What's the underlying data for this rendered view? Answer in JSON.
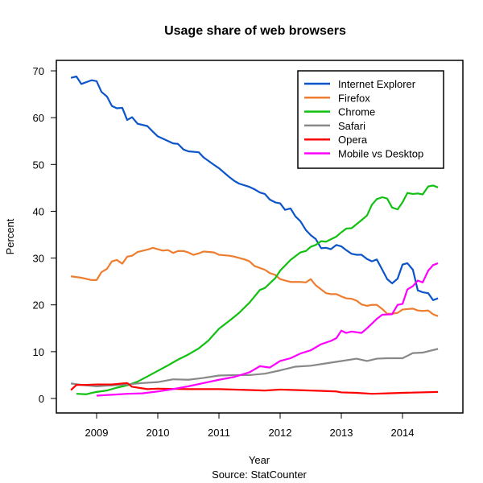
{
  "chart_data": {
    "type": "line",
    "title": "Usage share of web browsers",
    "xlabel": "Year",
    "ylabel": "Percent",
    "caption": "Source: StatCounter",
    "xlim": [
      2008.45,
      2014.75
    ],
    "ylim": [
      -3,
      73
    ],
    "x_ticks": [
      2009,
      2010,
      2011,
      2012,
      2013,
      2014
    ],
    "y_ticks": [
      0,
      10,
      20,
      30,
      40,
      50,
      60,
      70
    ],
    "grid": false,
    "legend_position": "top-right",
    "series": [
      {
        "name": "Internet Explorer",
        "color": "#0b54c9",
        "points": [
          [
            2008.58,
            68.5
          ],
          [
            2008.67,
            68.8
          ],
          [
            2008.75,
            67.2
          ],
          [
            2008.92,
            68.0
          ],
          [
            2009.0,
            67.8
          ],
          [
            2009.08,
            65.5
          ],
          [
            2009.17,
            64.5
          ],
          [
            2009.25,
            62.5
          ],
          [
            2009.33,
            62.0
          ],
          [
            2009.42,
            62.1
          ],
          [
            2009.5,
            59.5
          ],
          [
            2009.58,
            60.1
          ],
          [
            2009.67,
            58.7
          ],
          [
            2009.83,
            58.2
          ],
          [
            2009.92,
            57.0
          ],
          [
            2010.0,
            56.0
          ],
          [
            2010.17,
            55.0
          ],
          [
            2010.25,
            54.5
          ],
          [
            2010.33,
            54.4
          ],
          [
            2010.42,
            53.2
          ],
          [
            2010.5,
            52.8
          ],
          [
            2010.67,
            52.6
          ],
          [
            2010.75,
            51.5
          ],
          [
            2010.92,
            49.9
          ],
          [
            2011.0,
            49.2
          ],
          [
            2011.17,
            47.3
          ],
          [
            2011.25,
            46.5
          ],
          [
            2011.33,
            45.9
          ],
          [
            2011.5,
            45.2
          ],
          [
            2011.58,
            44.7
          ],
          [
            2011.67,
            44.0
          ],
          [
            2011.75,
            43.7
          ],
          [
            2011.83,
            42.5
          ],
          [
            2011.92,
            41.9
          ],
          [
            2012.0,
            41.7
          ],
          [
            2012.08,
            40.3
          ],
          [
            2012.17,
            40.6
          ],
          [
            2012.25,
            38.9
          ],
          [
            2012.33,
            37.9
          ],
          [
            2012.42,
            36.0
          ],
          [
            2012.5,
            34.9
          ],
          [
            2012.58,
            34.1
          ],
          [
            2012.67,
            32.1
          ],
          [
            2012.75,
            32.2
          ],
          [
            2012.83,
            31.9
          ],
          [
            2012.92,
            32.8
          ],
          [
            2013.0,
            32.5
          ],
          [
            2013.08,
            31.7
          ],
          [
            2013.17,
            30.9
          ],
          [
            2013.25,
            30.7
          ],
          [
            2013.33,
            30.7
          ],
          [
            2013.42,
            29.8
          ],
          [
            2013.5,
            29.3
          ],
          [
            2013.58,
            29.7
          ],
          [
            2013.67,
            27.5
          ],
          [
            2013.75,
            25.5
          ],
          [
            2013.83,
            24.6
          ],
          [
            2013.92,
            25.6
          ],
          [
            2014.0,
            28.6
          ],
          [
            2014.08,
            28.9
          ],
          [
            2014.17,
            27.5
          ],
          [
            2014.25,
            23.1
          ],
          [
            2014.33,
            22.7
          ],
          [
            2014.42,
            22.5
          ],
          [
            2014.5,
            21.0
          ],
          [
            2014.58,
            21.4
          ]
        ]
      },
      {
        "name": "Firefox",
        "color": "#ee7d2f",
        "points": [
          [
            2008.58,
            26.1
          ],
          [
            2008.75,
            25.8
          ],
          [
            2008.92,
            25.3
          ],
          [
            2009.0,
            25.3
          ],
          [
            2009.08,
            27.0
          ],
          [
            2009.17,
            27.7
          ],
          [
            2009.25,
            29.3
          ],
          [
            2009.33,
            29.6
          ],
          [
            2009.42,
            28.8
          ],
          [
            2009.5,
            30.3
          ],
          [
            2009.58,
            30.5
          ],
          [
            2009.67,
            31.3
          ],
          [
            2009.83,
            31.8
          ],
          [
            2009.92,
            32.2
          ],
          [
            2010.0,
            31.9
          ],
          [
            2010.08,
            31.6
          ],
          [
            2010.17,
            31.7
          ],
          [
            2010.25,
            31.1
          ],
          [
            2010.33,
            31.5
          ],
          [
            2010.42,
            31.5
          ],
          [
            2010.5,
            31.2
          ],
          [
            2010.58,
            30.7
          ],
          [
            2010.67,
            31.0
          ],
          [
            2010.75,
            31.4
          ],
          [
            2010.92,
            31.2
          ],
          [
            2011.0,
            30.7
          ],
          [
            2011.17,
            30.5
          ],
          [
            2011.25,
            30.3
          ],
          [
            2011.42,
            29.7
          ],
          [
            2011.5,
            29.3
          ],
          [
            2011.58,
            28.3
          ],
          [
            2011.75,
            27.5
          ],
          [
            2011.83,
            26.8
          ],
          [
            2011.92,
            26.4
          ],
          [
            2012.0,
            25.5
          ],
          [
            2012.08,
            25.2
          ],
          [
            2012.17,
            24.9
          ],
          [
            2012.33,
            24.9
          ],
          [
            2012.42,
            24.8
          ],
          [
            2012.5,
            25.5
          ],
          [
            2012.58,
            24.2
          ],
          [
            2012.67,
            23.3
          ],
          [
            2012.75,
            22.5
          ],
          [
            2012.83,
            22.3
          ],
          [
            2012.92,
            22.3
          ],
          [
            2013.0,
            21.8
          ],
          [
            2013.08,
            21.4
          ],
          [
            2013.17,
            21.3
          ],
          [
            2013.25,
            20.9
          ],
          [
            2013.33,
            20.1
          ],
          [
            2013.42,
            19.8
          ],
          [
            2013.5,
            20.0
          ],
          [
            2013.58,
            20.0
          ],
          [
            2013.67,
            19.1
          ],
          [
            2013.75,
            18.1
          ],
          [
            2013.83,
            18.1
          ],
          [
            2013.92,
            18.3
          ],
          [
            2014.0,
            19.0
          ],
          [
            2014.08,
            19.1
          ],
          [
            2014.17,
            19.2
          ],
          [
            2014.25,
            18.8
          ],
          [
            2014.33,
            18.7
          ],
          [
            2014.42,
            18.8
          ],
          [
            2014.5,
            18.0
          ],
          [
            2014.58,
            17.6
          ]
        ]
      },
      {
        "name": "Chrome",
        "color": "#11c011",
        "points": [
          [
            2008.67,
            1.0
          ],
          [
            2008.83,
            0.9
          ],
          [
            2008.92,
            1.2
          ],
          [
            2009.0,
            1.4
          ],
          [
            2009.17,
            1.7
          ],
          [
            2009.33,
            2.3
          ],
          [
            2009.5,
            2.8
          ],
          [
            2009.67,
            3.6
          ],
          [
            2009.83,
            4.7
          ],
          [
            2010.0,
            5.9
          ],
          [
            2010.17,
            7.1
          ],
          [
            2010.33,
            8.3
          ],
          [
            2010.5,
            9.4
          ],
          [
            2010.67,
            10.7
          ],
          [
            2010.83,
            12.4
          ],
          [
            2011.0,
            14.9
          ],
          [
            2011.17,
            16.6
          ],
          [
            2011.33,
            18.3
          ],
          [
            2011.5,
            20.5
          ],
          [
            2011.67,
            23.2
          ],
          [
            2011.75,
            23.6
          ],
          [
            2011.92,
            25.7
          ],
          [
            2012.0,
            27.3
          ],
          [
            2012.17,
            29.6
          ],
          [
            2012.33,
            31.2
          ],
          [
            2012.42,
            31.5
          ],
          [
            2012.5,
            32.4
          ],
          [
            2012.58,
            32.8
          ],
          [
            2012.67,
            33.6
          ],
          [
            2012.75,
            33.5
          ],
          [
            2012.92,
            34.6
          ],
          [
            2013.0,
            35.5
          ],
          [
            2013.08,
            36.3
          ],
          [
            2013.17,
            36.4
          ],
          [
            2013.33,
            38.1
          ],
          [
            2013.42,
            39.1
          ],
          [
            2013.5,
            41.4
          ],
          [
            2013.58,
            42.6
          ],
          [
            2013.67,
            43.0
          ],
          [
            2013.75,
            42.7
          ],
          [
            2013.83,
            40.8
          ],
          [
            2013.92,
            40.4
          ],
          [
            2014.0,
            41.9
          ],
          [
            2014.08,
            43.9
          ],
          [
            2014.17,
            43.7
          ],
          [
            2014.25,
            43.8
          ],
          [
            2014.33,
            43.6
          ],
          [
            2014.42,
            45.3
          ],
          [
            2014.5,
            45.5
          ],
          [
            2014.58,
            45.1
          ]
        ]
      },
      {
        "name": "Safari",
        "color": "#888888",
        "points": [
          [
            2008.58,
            3.2
          ],
          [
            2008.75,
            2.9
          ],
          [
            2009.0,
            2.6
          ],
          [
            2009.25,
            2.8
          ],
          [
            2009.5,
            3.0
          ],
          [
            2009.75,
            3.3
          ],
          [
            2010.0,
            3.5
          ],
          [
            2010.25,
            4.1
          ],
          [
            2010.5,
            4.0
          ],
          [
            2010.75,
            4.4
          ],
          [
            2011.0,
            4.9
          ],
          [
            2011.25,
            5.0
          ],
          [
            2011.5,
            5.0
          ],
          [
            2011.75,
            5.3
          ],
          [
            2012.0,
            6.0
          ],
          [
            2012.25,
            6.8
          ],
          [
            2012.5,
            7.0
          ],
          [
            2012.75,
            7.5
          ],
          [
            2013.0,
            8.0
          ],
          [
            2013.25,
            8.5
          ],
          [
            2013.42,
            8.0
          ],
          [
            2013.58,
            8.5
          ],
          [
            2013.75,
            8.6
          ],
          [
            2014.0,
            8.6
          ],
          [
            2014.17,
            9.7
          ],
          [
            2014.33,
            9.8
          ],
          [
            2014.58,
            10.6
          ]
        ]
      },
      {
        "name": "Opera",
        "color": "#ff0000",
        "points": [
          [
            2008.58,
            1.8
          ],
          [
            2008.67,
            2.9
          ],
          [
            2008.83,
            2.9
          ],
          [
            2009.0,
            3.0
          ],
          [
            2009.25,
            3.0
          ],
          [
            2009.5,
            3.3
          ],
          [
            2009.58,
            2.5
          ],
          [
            2009.83,
            2.0
          ],
          [
            2010.0,
            2.1
          ],
          [
            2010.5,
            2.0
          ],
          [
            2011.0,
            2.0
          ],
          [
            2011.5,
            1.8
          ],
          [
            2011.75,
            1.7
          ],
          [
            2012.0,
            1.9
          ],
          [
            2012.25,
            1.8
          ],
          [
            2012.5,
            1.7
          ],
          [
            2012.92,
            1.5
          ],
          [
            2013.0,
            1.3
          ],
          [
            2013.25,
            1.2
          ],
          [
            2013.5,
            1.0
          ],
          [
            2013.75,
            1.1
          ],
          [
            2014.0,
            1.2
          ],
          [
            2014.58,
            1.4
          ]
        ]
      },
      {
        "name": "Mobile vs Desktop",
        "color": "#ff00ff",
        "points": [
          [
            2009.0,
            0.6
          ],
          [
            2009.25,
            0.8
          ],
          [
            2009.5,
            1.0
          ],
          [
            2009.75,
            1.1
          ],
          [
            2010.0,
            1.5
          ],
          [
            2010.25,
            2.0
          ],
          [
            2010.5,
            2.6
          ],
          [
            2010.75,
            3.3
          ],
          [
            2011.0,
            4.0
          ],
          [
            2011.25,
            4.6
          ],
          [
            2011.5,
            5.6
          ],
          [
            2011.67,
            6.9
          ],
          [
            2011.83,
            6.6
          ],
          [
            2012.0,
            8.0
          ],
          [
            2012.17,
            8.6
          ],
          [
            2012.33,
            9.6
          ],
          [
            2012.5,
            10.3
          ],
          [
            2012.67,
            11.6
          ],
          [
            2012.83,
            12.3
          ],
          [
            2012.92,
            12.9
          ],
          [
            2013.0,
            14.5
          ],
          [
            2013.08,
            14.0
          ],
          [
            2013.17,
            14.3
          ],
          [
            2013.33,
            14.0
          ],
          [
            2013.42,
            15.0
          ],
          [
            2013.58,
            17.0
          ],
          [
            2013.67,
            17.9
          ],
          [
            2013.83,
            18.0
          ],
          [
            2013.92,
            20.0
          ],
          [
            2014.0,
            20.2
          ],
          [
            2014.08,
            23.3
          ],
          [
            2014.17,
            24.0
          ],
          [
            2014.25,
            25.2
          ],
          [
            2014.33,
            24.8
          ],
          [
            2014.42,
            27.3
          ],
          [
            2014.5,
            28.5
          ],
          [
            2014.58,
            28.9
          ]
        ]
      }
    ]
  }
}
